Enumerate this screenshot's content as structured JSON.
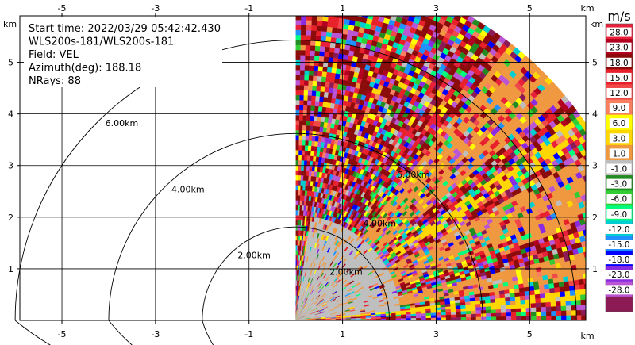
{
  "chart_data": {
    "type": "heatmap",
    "info_lines": [
      "Start time: 2022/03/29 05:42:42.430",
      "WLS200s-181/WLS200s-181",
      "Field: VEL",
      "Azimuth(deg): 188.18",
      "NRays: 88"
    ],
    "x_unit": "km",
    "y_unit": "km",
    "xlim": [
      -5.9,
      6.2
    ],
    "ylim": [
      0,
      5.9
    ],
    "x_ticks": [
      -5,
      -3,
      -1,
      1,
      3,
      5
    ],
    "y_ticks": [
      1,
      2,
      3,
      4,
      5
    ],
    "grid": true,
    "range_rings": [
      {
        "radius_km": 2,
        "label": "2.00km"
      },
      {
        "radius_km": 4,
        "label": "4.00km"
      },
      {
        "radius_km": 6,
        "label": "6.00km"
      }
    ],
    "sector_azimuth_deg": [
      0,
      90
    ],
    "max_range_km": 7.5,
    "colorbar": {
      "unit": "m/s",
      "tick_labels": [
        "28.0",
        "23.0",
        "18.0",
        "15.0",
        "12.0",
        "9.0",
        "6.0",
        "3.0",
        "1.0",
        "-1.0",
        "-3.0",
        "-6.0",
        "-9.0",
        "-12.0",
        "-15.0",
        "-18.0",
        "-23.0",
        "-28.0"
      ],
      "colors": [
        "#e8203a",
        "#b40020",
        "#8b0a0a",
        "#e8202a",
        "#f04848",
        "#f88060",
        "#ffff00",
        "#ffd700",
        "#f09840",
        "#bebebe",
        "#228b22",
        "#32cd32",
        "#00ff7f",
        "#00ced1",
        "#1e90ff",
        "#0000ff",
        "#8a2be2",
        "#ba55d3",
        "#8b1a55"
      ]
    }
  }
}
